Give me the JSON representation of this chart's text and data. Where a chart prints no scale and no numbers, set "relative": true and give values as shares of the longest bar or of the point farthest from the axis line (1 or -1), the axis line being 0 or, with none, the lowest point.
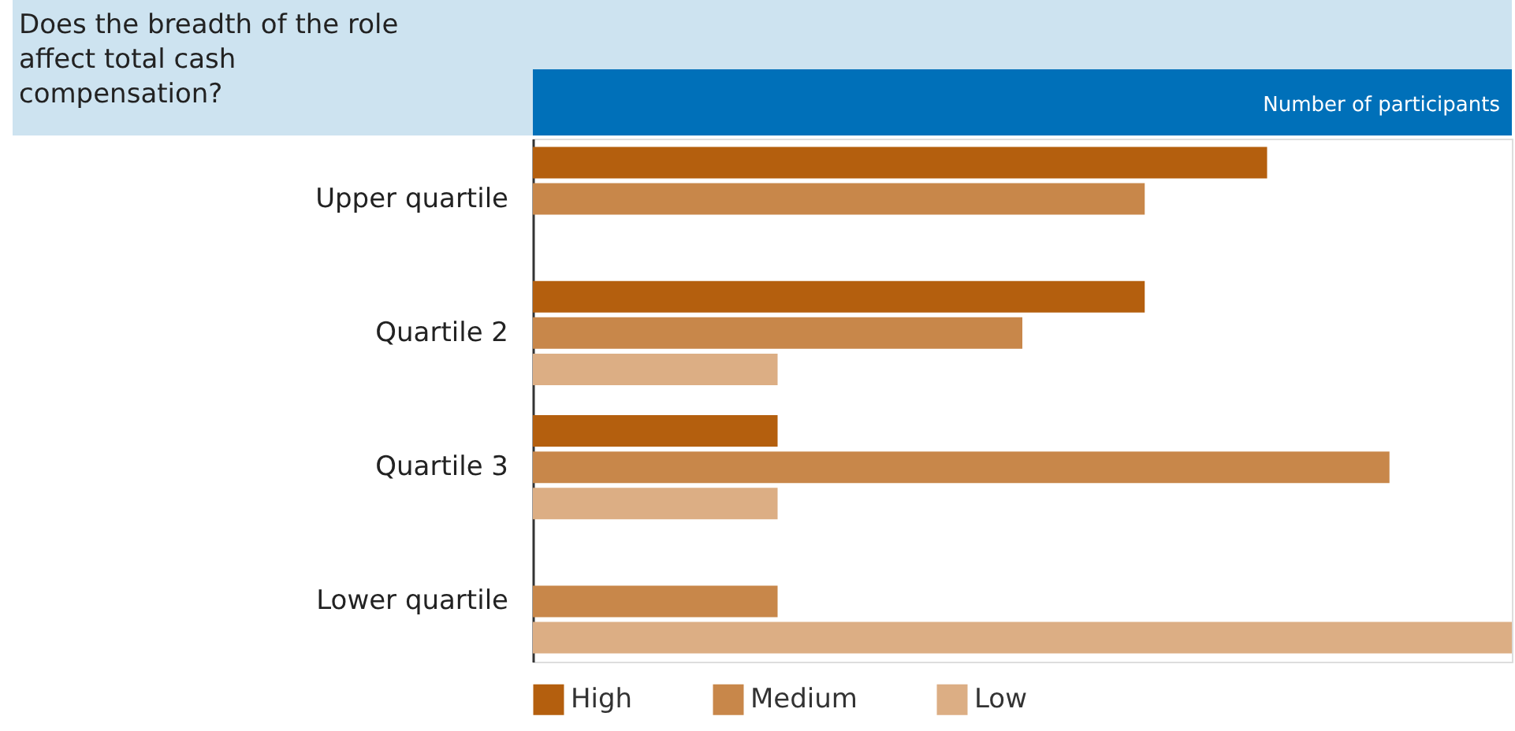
{
  "chart_data": {
    "type": "bar",
    "orientation": "horizontal",
    "relative": true,
    "title": "Does the breadth of the role affect total cash compensation?",
    "xlabel": "Number of participants",
    "categories": [
      "Upper quartile",
      "Quartile 2",
      "Quartile 3",
      "Lower quartile"
    ],
    "series": [
      {
        "name": "High",
        "color": "#b45f0e",
        "values": [
          0.75,
          0.625,
          0.25,
          null
        ]
      },
      {
        "name": "Medium",
        "color": "#c8874a",
        "values": [
          0.625,
          0.5,
          0.875,
          0.25
        ]
      },
      {
        "name": "Low",
        "color": "#dcae84",
        "values": [
          null,
          0.25,
          0.25,
          1
        ]
      }
    ],
    "legend": "bottom",
    "grid": false
  }
}
